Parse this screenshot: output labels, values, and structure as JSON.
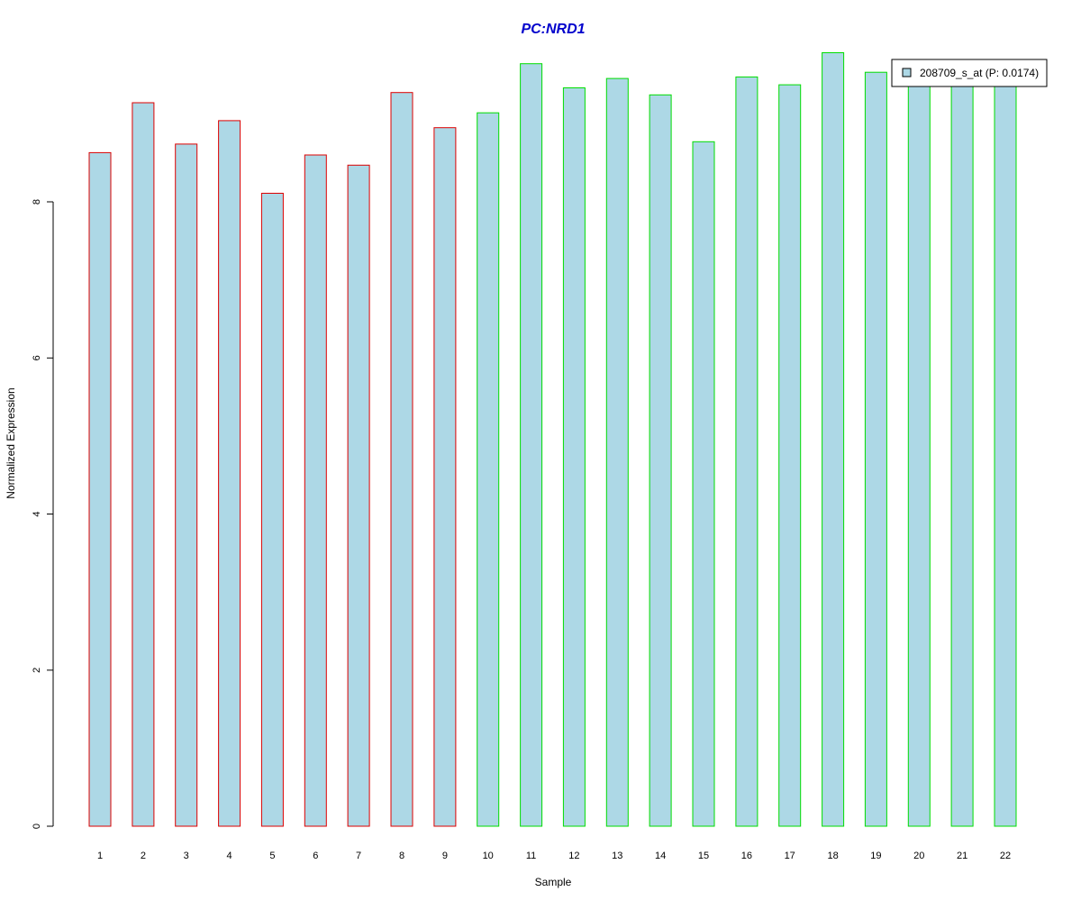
{
  "chart_data": {
    "type": "bar",
    "title": "PC:NRD1",
    "xlabel": "Sample",
    "ylabel": "Normalized Expression",
    "categories": [
      "1",
      "2",
      "3",
      "4",
      "5",
      "6",
      "7",
      "8",
      "9",
      "10",
      "11",
      "12",
      "13",
      "14",
      "15",
      "16",
      "17",
      "18",
      "19",
      "20",
      "21",
      "22"
    ],
    "series": [
      {
        "name": "208709_s_at (P: 0.0174)",
        "values": [
          8.63,
          9.27,
          8.74,
          9.04,
          8.11,
          8.6,
          8.47,
          9.4,
          8.95,
          9.14,
          9.77,
          9.46,
          9.58,
          9.37,
          8.77,
          9.6,
          9.5,
          9.91,
          9.66,
          9.54,
          9.48,
          9.52
        ]
      }
    ],
    "group_border_colors": [
      "#dd0000",
      "#dd0000",
      "#dd0000",
      "#dd0000",
      "#dd0000",
      "#dd0000",
      "#dd0000",
      "#dd0000",
      "#dd0000",
      "#00dd00",
      "#00dd00",
      "#00dd00",
      "#00dd00",
      "#00dd00",
      "#00dd00",
      "#00dd00",
      "#00dd00",
      "#00dd00",
      "#00dd00",
      "#00dd00",
      "#00dd00",
      "#00dd00"
    ],
    "bar_fill": "#add8e6",
    "title_color": "#0000cc",
    "y_ticks": [
      0,
      2,
      4,
      6,
      8
    ],
    "ylim": [
      0,
      10
    ],
    "grid": false,
    "legend_position": "top-right"
  }
}
